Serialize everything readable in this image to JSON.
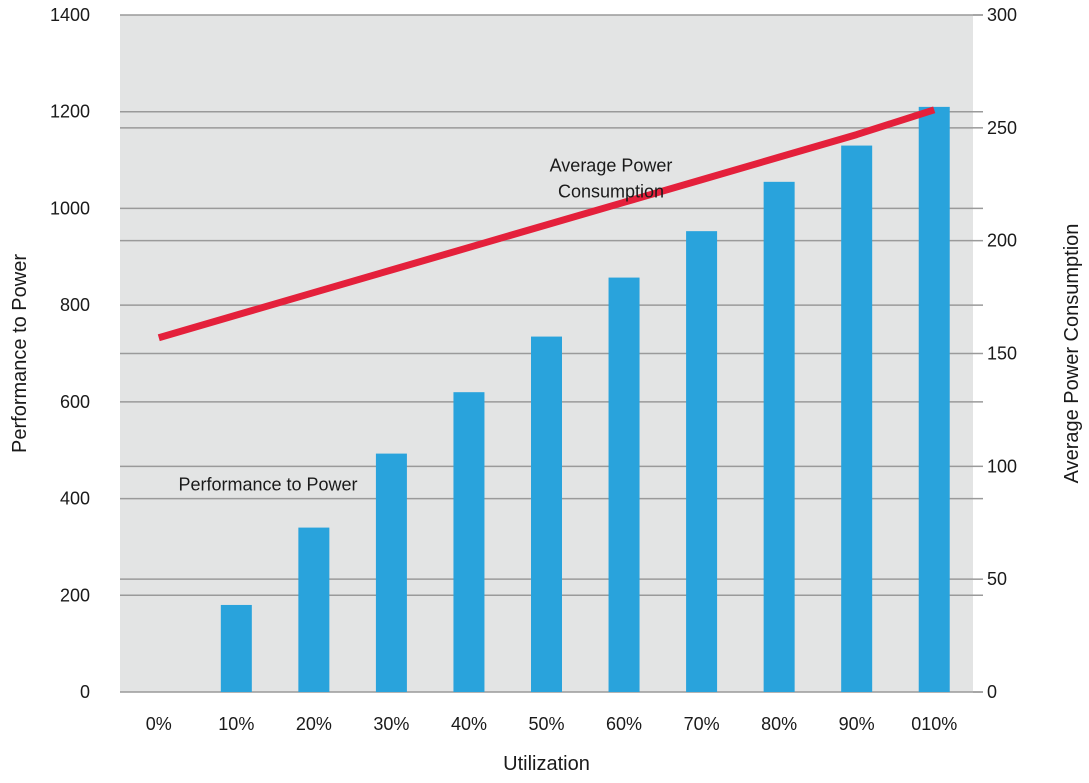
{
  "chart_data": {
    "type": "bar",
    "categories": [
      "0%",
      "10%",
      "20%",
      "30%",
      "40%",
      "50%",
      "60%",
      "70%",
      "80%",
      "90%",
      "010%"
    ],
    "series": [
      {
        "name": "Performance to Power",
        "type": "bar",
        "axis": "left",
        "values": [
          0,
          180,
          340,
          493,
          620,
          735,
          857,
          953,
          1055,
          1130,
          1210
        ],
        "color": "#29a3dc"
      },
      {
        "name": "Average Power Consumption",
        "type": "line",
        "axis": "right",
        "values": [
          157,
          167,
          177,
          187,
          197,
          207,
          217,
          227,
          237,
          247,
          258
        ],
        "color": "#e4203b"
      }
    ],
    "annotations": {
      "bar_label": "Performance to Power",
      "line_label_1": "Average Power",
      "line_label_2": "Consumption"
    },
    "xlabel": "Utilization",
    "ylabel": "Performance to Power",
    "y2label": "Average Power Consumption",
    "ylim": [
      0,
      1400
    ],
    "y2lim": [
      0,
      300
    ],
    "yticks": [
      0,
      200,
      400,
      600,
      800,
      1000,
      1200,
      1400
    ],
    "y2ticks": [
      0,
      50,
      100,
      150,
      200,
      250,
      300
    ],
    "grid": true,
    "plot_background": "#e3e4e4",
    "gridline_color": "#9a9a9a"
  }
}
